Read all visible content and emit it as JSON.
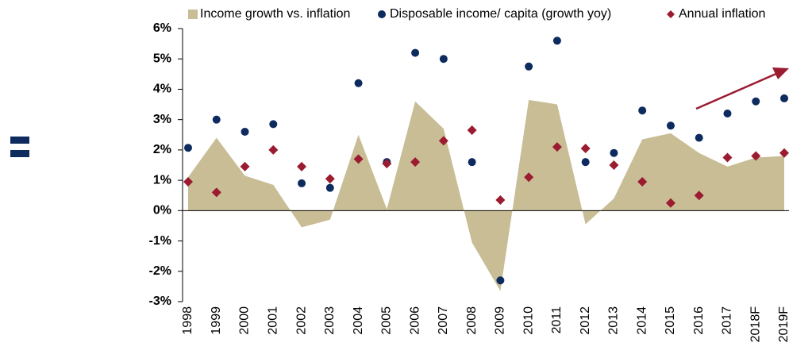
{
  "chart_data": {
    "type": "area_scatter",
    "categories": [
      "1998",
      "1999",
      "2000",
      "2001",
      "2002",
      "2003",
      "2004",
      "2005",
      "2006",
      "2007",
      "2008",
      "2009",
      "2010",
      "2011",
      "2012",
      "2013",
      "2014",
      "2015",
      "2016",
      "2017",
      "2018F",
      "2019F"
    ],
    "series": [
      {
        "name": "Income growth vs. inflation",
        "color": "#c8bd95",
        "kind": "area",
        "values": [
          1.1,
          2.4,
          1.15,
          0.85,
          -0.55,
          -0.3,
          2.5,
          0.05,
          3.6,
          2.7,
          -1.05,
          -2.65,
          3.65,
          3.5,
          -0.45,
          0.4,
          2.35,
          2.55,
          1.9,
          1.45,
          1.75,
          1.8
        ]
      },
      {
        "name": "Disposable income/ capita (growth yoy)",
        "color": "#0d2b5e",
        "kind": "dot",
        "values": [
          2.07,
          3.0,
          2.6,
          2.85,
          0.9,
          0.75,
          4.2,
          1.6,
          5.2,
          5.0,
          1.6,
          -2.3,
          4.75,
          5.6,
          1.6,
          1.9,
          3.3,
          2.8,
          2.4,
          3.2,
          3.6,
          3.7
        ]
      },
      {
        "name": "Annual inflation",
        "color": "#9b1b30",
        "kind": "diamond",
        "values": [
          0.95,
          0.6,
          1.45,
          2.0,
          1.45,
          1.05,
          1.7,
          1.55,
          1.6,
          2.3,
          2.65,
          0.35,
          1.1,
          2.1,
          2.05,
          1.5,
          0.95,
          0.25,
          0.5,
          1.75,
          1.8,
          1.9
        ]
      }
    ],
    "ylim": [
      -3,
      6
    ],
    "yticks": [
      {
        "value": -3,
        "label": "-3%"
      },
      {
        "value": -2,
        "label": "-2%"
      },
      {
        "value": -1,
        "label": "-1%"
      },
      {
        "value": 0,
        "label": "0%"
      },
      {
        "value": 1,
        "label": "1%"
      },
      {
        "value": 2,
        "label": "2%"
      },
      {
        "value": 3,
        "label": "3%"
      },
      {
        "value": 4,
        "label": "4%"
      },
      {
        "value": 5,
        "label": "5%"
      },
      {
        "value": 6,
        "label": "6%"
      }
    ]
  }
}
